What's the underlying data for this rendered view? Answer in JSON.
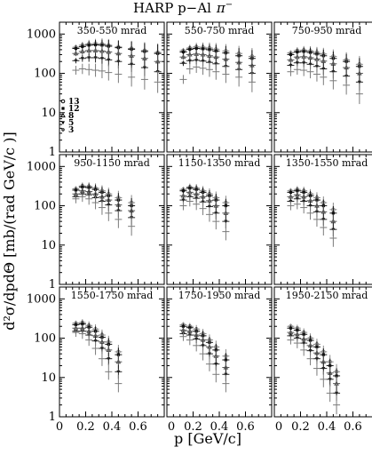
{
  "title_main": "HARP p−Al",
  "title_particle": "π",
  "title_sup": "−",
  "xlabel": "p [GeV/c]",
  "ylabel": "d²σ/dpdΘ [mb/(rad GeV/c )]",
  "legend": [
    "13",
    "12",
    "8",
    "5",
    "3"
  ],
  "chart_data": {
    "type": "scatter",
    "title": "HARP p−Al π⁻",
    "xlabel": "p [GeV/c]",
    "ylabel": "d²σ/dpdΘ [mb/(rad GeV/c )]",
    "xlim": [
      0,
      0.8
    ],
    "ylim": [
      1,
      2000
    ],
    "yscale": "log",
    "x_ticks": [
      "0",
      "0.2",
      "0.4",
      "0.6"
    ],
    "y_ticks": [
      "1",
      "10",
      "100",
      "1000"
    ],
    "series_names": [
      "13",
      "12",
      "8",
      "5",
      "3"
    ],
    "panels": [
      {
        "label": "350-550 mrad",
        "x": [
          0.125,
          0.175,
          0.225,
          0.275,
          0.325,
          0.375,
          0.45,
          0.55,
          0.65,
          0.75
        ],
        "series": [
          {
            "name": "13",
            "values": [
              460,
              520,
              560,
              570,
              560,
              520,
              470,
              430,
              380,
              340
            ]
          },
          {
            "name": "12",
            "values": [
              430,
              480,
              520,
              530,
              520,
              490,
              450,
              410,
              360,
              320
            ]
          },
          {
            "name": "8",
            "values": [
              320,
              360,
              380,
              380,
              370,
              350,
              320,
              280,
              240,
              200
            ]
          },
          {
            "name": "5",
            "values": [
              210,
              240,
              250,
              250,
              240,
              220,
              200,
              170,
              140,
              110
            ]
          },
          {
            "name": "3",
            "values": [
              120,
              130,
              125,
              120,
              115,
              105,
              95,
              80,
              70,
              60
            ]
          }
        ]
      },
      {
        "label": "550-750 mrad",
        "x": [
          0.125,
          0.175,
          0.225,
          0.275,
          0.325,
          0.375,
          0.45,
          0.55,
          0.65
        ],
        "series": [
          {
            "name": "13",
            "values": [
              380,
              440,
              470,
              460,
              440,
              410,
              370,
              320,
              270
            ]
          },
          {
            "name": "12",
            "values": [
              350,
              410,
              430,
              420,
              400,
              370,
              330,
              280,
              240
            ]
          },
          {
            "name": "8",
            "values": [
              260,
              300,
              310,
              300,
              280,
              260,
              230,
              190,
              160
            ]
          },
          {
            "name": "5",
            "values": [
              180,
              210,
              215,
              205,
              190,
              175,
              150,
              125,
              100
            ]
          },
          {
            "name": "3",
            "values": [
              70,
              130,
              145,
              135,
              125,
              110,
              95,
              80,
              60
            ]
          }
        ]
      },
      {
        "label": "750-950 mrad",
        "x": [
          0.125,
          0.175,
          0.225,
          0.275,
          0.325,
          0.375,
          0.45,
          0.55,
          0.65
        ],
        "series": [
          {
            "name": "13",
            "values": [
              330,
              380,
              390,
              370,
              340,
              310,
              270,
              220,
              170
            ]
          },
          {
            "name": "12",
            "values": [
              300,
              350,
              360,
              340,
              310,
              280,
              240,
              200,
              150
            ]
          },
          {
            "name": "8",
            "values": [
              220,
              260,
              265,
              250,
              230,
              205,
              175,
              140,
              100
            ]
          },
          {
            "name": "5",
            "values": [
              160,
              185,
              185,
              170,
              150,
              130,
              110,
              85,
              60
            ]
          },
          {
            "name": "3",
            "values": [
              110,
              125,
              120,
              110,
              95,
              80,
              65,
              50,
              30
            ]
          }
        ]
      },
      {
        "label": "950-1150 mrad",
        "x": [
          0.125,
          0.175,
          0.225,
          0.275,
          0.325,
          0.375,
          0.45,
          0.55
        ],
        "series": [
          {
            "name": "13",
            "values": [
              270,
              320,
              310,
              280,
              240,
              200,
              160,
              120
            ]
          },
          {
            "name": "12",
            "values": [
              250,
              300,
              290,
              260,
              220,
              180,
              140,
              100
            ]
          },
          {
            "name": "8",
            "values": [
              200,
              240,
              230,
              200,
              170,
              140,
              105,
              75
            ]
          },
          {
            "name": "5",
            "values": [
              170,
              200,
              190,
              160,
              130,
              105,
              75,
              50
            ]
          },
          {
            "name": "3",
            "values": [
              150,
              170,
              150,
              120,
              90,
              65,
              45,
              30
            ]
          }
        ]
      },
      {
        "label": "1150-1350 mrad",
        "x": [
          0.125,
          0.175,
          0.225,
          0.275,
          0.325,
          0.375,
          0.45
        ],
        "series": [
          {
            "name": "13",
            "values": [
              260,
              300,
              280,
              240,
              200,
              160,
              120
            ]
          },
          {
            "name": "12",
            "values": [
              240,
              280,
              260,
              220,
              180,
              140,
              100
            ]
          },
          {
            "name": "8",
            "values": [
              180,
              220,
              200,
              170,
              135,
              100,
              65
            ]
          },
          {
            "name": "5",
            "values": [
              140,
              170,
              155,
              125,
              95,
              65,
              40
            ]
          },
          {
            "name": "3",
            "values": [
              100,
              130,
              110,
              85,
              60,
              40,
              22
            ]
          }
        ]
      },
      {
        "label": "1350-1550 mrad",
        "x": [
          0.125,
          0.175,
          0.225,
          0.275,
          0.325,
          0.375,
          0.45
        ],
        "series": [
          {
            "name": "13",
            "values": [
              240,
              260,
              240,
              200,
              160,
              120,
              80
            ]
          },
          {
            "name": "12",
            "values": [
              220,
              240,
              220,
              180,
              140,
              100,
              65
            ]
          },
          {
            "name": "8",
            "values": [
              170,
              190,
              170,
              135,
              100,
              70,
              40
            ]
          },
          {
            "name": "5",
            "values": [
              130,
              150,
              130,
              100,
              70,
              45,
              25
            ]
          },
          {
            "name": "3",
            "values": [
              100,
              110,
              90,
              65,
              45,
              28,
              15
            ]
          }
        ]
      },
      {
        "label": "1550-1750 mrad",
        "x": [
          0.125,
          0.175,
          0.225,
          0.275,
          0.325,
          0.375,
          0.45
        ],
        "series": [
          {
            "name": "13",
            "values": [
              240,
              250,
              210,
              170,
              120,
              80,
              45
            ]
          },
          {
            "name": "12",
            "values": [
              220,
              230,
              190,
              150,
              105,
              70,
              38
            ]
          },
          {
            "name": "8",
            "values": [
              180,
              180,
              150,
              115,
              80,
              50,
              25
            ]
          },
          {
            "name": "5",
            "values": [
              150,
              150,
              120,
              85,
              55,
              30,
              14
            ]
          },
          {
            "name": "3",
            "values": [
              140,
              130,
              90,
              55,
              30,
              14,
              7
            ]
          }
        ]
      },
      {
        "label": "1750-1950 mrad",
        "x": [
          0.125,
          0.175,
          0.225,
          0.275,
          0.325,
          0.375,
          0.45
        ],
        "series": [
          {
            "name": "13",
            "values": [
              220,
              200,
              170,
              130,
              90,
              60,
              35
            ]
          },
          {
            "name": "12",
            "values": [
              200,
              185,
              150,
              115,
              78,
              50,
              28
            ]
          },
          {
            "name": "8",
            "values": [
              160,
              150,
              120,
              90,
              60,
              35,
              18
            ]
          },
          {
            "name": "5",
            "values": [
              130,
              120,
              95,
              65,
              40,
              22,
              12
            ]
          },
          {
            "name": "3",
            "values": [
              110,
              90,
              65,
              40,
              22,
              12,
              7
            ]
          }
        ]
      },
      {
        "label": "1950-2150 mrad",
        "x": [
          0.125,
          0.175,
          0.225,
          0.275,
          0.325,
          0.375,
          0.425,
          0.475
        ],
        "series": [
          {
            "name": "13",
            "values": [
              200,
              180,
              140,
              100,
              70,
              45,
              25,
              14
            ]
          },
          {
            "name": "12",
            "values": [
              180,
              160,
              125,
              88,
              60,
              38,
              20,
              11
            ]
          },
          {
            "name": "8",
            "values": [
              140,
              125,
              95,
              65,
              42,
              25,
              13,
              7
            ]
          },
          {
            "name": "5",
            "values": [
              115,
              100,
              75,
              48,
              30,
              17,
              9,
              4
            ]
          },
          {
            "name": "3",
            "values": [
              90,
              75,
              50,
              30,
              17,
              9,
              4,
              2
            ]
          }
        ]
      }
    ]
  }
}
